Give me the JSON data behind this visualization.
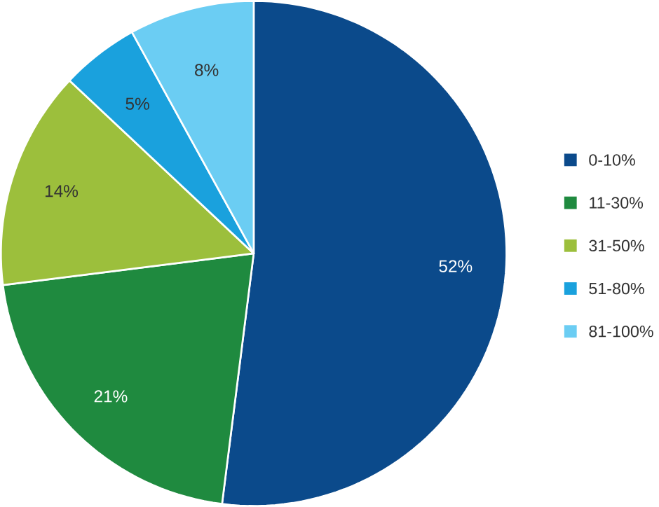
{
  "chart_data": {
    "type": "pie",
    "categories": [
      "0-10%",
      "11-30%",
      "31-50%",
      "51-80%",
      "81-100%"
    ],
    "values": [
      52,
      21,
      14,
      5,
      8
    ],
    "colors": [
      "#0b4a8b",
      "#1f8a3f",
      "#9cbf3c",
      "#1aa1dd",
      "#6bcdf3"
    ],
    "value_labels": [
      "52%",
      "21%",
      "14%",
      "5%",
      "8%"
    ],
    "legend": "right"
  }
}
